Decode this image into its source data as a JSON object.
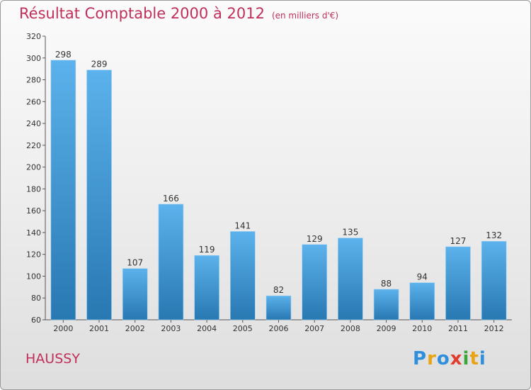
{
  "chart_data": {
    "type": "bar",
    "title": "Résultat Comptable 2000 à 2012",
    "subtitle": "(en milliers d'€)",
    "xlabel": "",
    "ylabel": "",
    "categories": [
      "2000",
      "2001",
      "2002",
      "2003",
      "2004",
      "2005",
      "2006",
      "2007",
      "2008",
      "2009",
      "2010",
      "2011",
      "2012"
    ],
    "values": [
      298,
      289,
      107,
      166,
      119,
      141,
      82,
      129,
      135,
      88,
      94,
      127,
      132
    ],
    "ylim": [
      60,
      320
    ],
    "yticks": [
      60,
      80,
      100,
      120,
      140,
      160,
      180,
      200,
      220,
      240,
      260,
      280,
      300,
      320
    ],
    "grid": false
  },
  "caption": {
    "city": "HAUSSY"
  },
  "logo": {
    "text": "Proxiti"
  },
  "colors": {
    "title": "#c0305a",
    "bar_top": "#5cb2ec",
    "bar_bottom": "#2878b2",
    "axis": "#555555",
    "logo": [
      "#2f8fdc",
      "#e8a317",
      "#2f8fdc",
      "#e23c2e",
      "#3aa63a",
      "#e8a317",
      "#2f8fdc"
    ]
  }
}
